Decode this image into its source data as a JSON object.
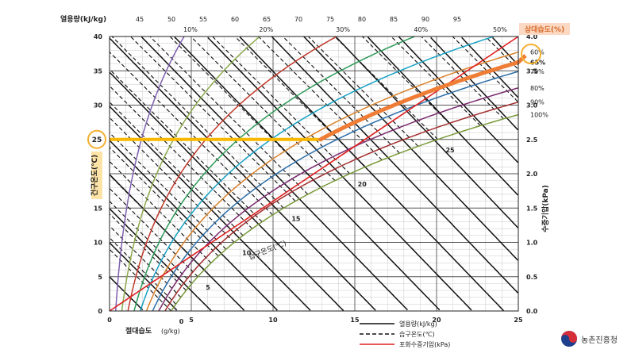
{
  "chart_data": {
    "type": "line",
    "title": "",
    "xlabel": "절대습도",
    "xlabel_unit": "(g/kg)",
    "ylabel": "건구온도(℃)",
    "y2label": "수증기압(kPa)",
    "toplabel": "열용량(kJ/kg)",
    "rhlabel": "상대습도(%)",
    "wetbulb_label": "습구온도(℃)",
    "xlim": [
      0,
      25
    ],
    "ylim": [
      0,
      40
    ],
    "y2lim": [
      0,
      4.0
    ],
    "x_ticks": [
      "0",
      "5",
      "10",
      "15",
      "20",
      "25"
    ],
    "y_ticks": [
      "0",
      "5",
      "10",
      "15",
      "20",
      "25",
      "30",
      "35",
      "40"
    ],
    "y2_ticks": [
      "0.0",
      "0.5",
      "1.0",
      "1.5",
      "2.0",
      "2.5",
      "3.0",
      "3.5",
      "4.0"
    ],
    "enthalpy_ticks": [
      "45",
      "50",
      "55",
      "60",
      "65",
      "70",
      "75",
      "80",
      "85",
      "90",
      "95"
    ],
    "rh_top_labels": [
      "10%",
      "20%",
      "30%",
      "40%",
      "50%"
    ],
    "rh_right_labels": [
      "60%",
      "65%",
      "70%",
      "80%",
      "90%",
      "100%"
    ],
    "wetbulb_values": [
      "0",
      "5",
      "10",
      "15",
      "20",
      "25"
    ],
    "rh_series": [
      {
        "rh": 10,
        "color": "#7d5fae"
      },
      {
        "rh": 20,
        "color": "#8aa84a"
      },
      {
        "rh": 30,
        "color": "#c0392b"
      },
      {
        "rh": 40,
        "color": "#2e9a58"
      },
      {
        "rh": 50,
        "color": "#16a2c4"
      },
      {
        "rh": 60,
        "color": "#d9822b"
      },
      {
        "rh": 70,
        "color": "#2e6fa8"
      },
      {
        "rh": 80,
        "color": "#7b2a6f"
      },
      {
        "rh": 90,
        "color": "#a32d2d"
      },
      {
        "rh": 100,
        "color": "#7a9a3a"
      }
    ],
    "highlight": {
      "temperature": 25,
      "temperature_label": "25",
      "rh": 65,
      "rh_label": "65%",
      "x_at_rh": 12.8,
      "color_line": "#f9b800",
      "color_curve": "#ef7d35",
      "color_circle": "#f4b030"
    },
    "legend": [
      {
        "label": "열용량(kJ/kg)",
        "style": "solid",
        "color": "#111111"
      },
      {
        "label": "습구온도(℃)",
        "style": "dashed",
        "color": "#111111"
      },
      {
        "label": "포화수증기압(kPa)",
        "style": "solid",
        "color": "#e02020"
      }
    ],
    "vapor_pressure_line": {
      "color": "#e02020",
      "x": [
        0,
        25
      ],
      "kpa": [
        0,
        4.0
      ]
    }
  },
  "logo": {
    "text": "농촌진흥청"
  }
}
